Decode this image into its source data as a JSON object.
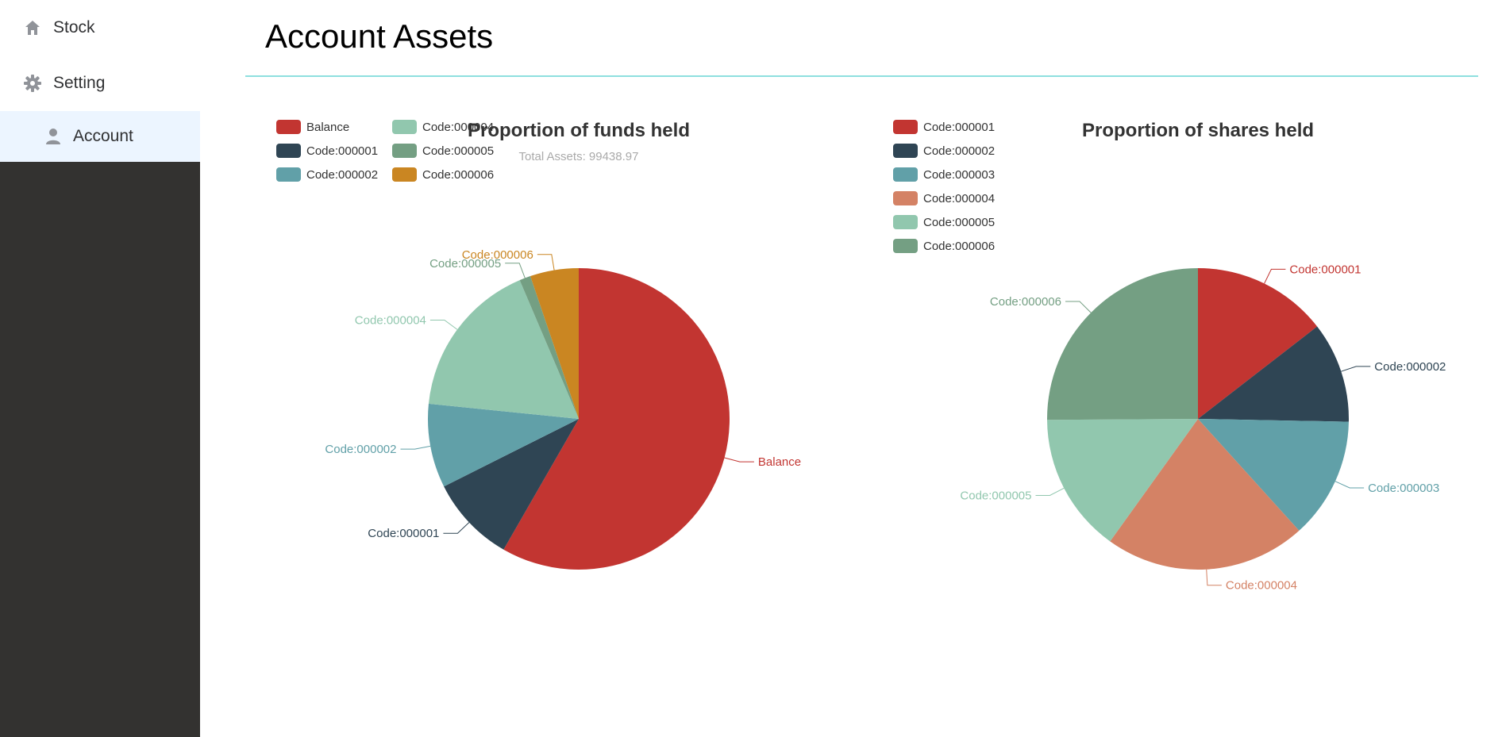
{
  "sidebar": {
    "items": [
      {
        "label": "Stock",
        "icon": "home-icon"
      },
      {
        "label": "Setting",
        "icon": "gear-icon"
      },
      {
        "label": "Account",
        "icon": "user-icon"
      }
    ]
  },
  "page": {
    "title": "Account Assets"
  },
  "colors": {
    "Balance": "#c23531",
    "Code:000001": "#2f4554",
    "Code:000002": "#61a0a8",
    "Code:000003": "#61a0a8",
    "Code:000004": "#d48265",
    "Code:000005": "#91c7ae",
    "Code:000006": "#749f83"
  },
  "chart_data": [
    {
      "type": "pie",
      "title": "Proportion of funds held",
      "subtitle": "Total Assets: 99438.97",
      "legend_position": "top-left",
      "legend": [
        "Balance",
        "Code:000001",
        "Code:000002",
        "Code:000004",
        "Code:000005",
        "Code:000006"
      ],
      "slices": [
        {
          "name": "Balance",
          "value": 58.3,
          "color": "#c23531"
        },
        {
          "name": "Code:000001",
          "value": 9.3,
          "color": "#2f4554"
        },
        {
          "name": "Code:000002",
          "value": 9.0,
          "color": "#61a0a8"
        },
        {
          "name": "Code:000004",
          "value": 17.0,
          "color": "#91c7ae"
        },
        {
          "name": "Code:000005",
          "value": 1.2,
          "color": "#749f83"
        },
        {
          "name": "Code:000006",
          "value": 5.2,
          "color": "#ca8622"
        }
      ]
    },
    {
      "type": "pie",
      "title": "Proportion of shares held",
      "subtitle": "",
      "legend_position": "top-left",
      "legend": [
        "Code:000001",
        "Code:000002",
        "Code:000003",
        "Code:000004",
        "Code:000005",
        "Code:000006"
      ],
      "slices": [
        {
          "name": "Code:000001",
          "value": 14.5,
          "color": "#c23531"
        },
        {
          "name": "Code:000002",
          "value": 10.8,
          "color": "#2f4554"
        },
        {
          "name": "Code:000003",
          "value": 13.0,
          "color": "#61a0a8"
        },
        {
          "name": "Code:000004",
          "value": 21.6,
          "color": "#d48265"
        },
        {
          "name": "Code:000005",
          "value": 15.0,
          "color": "#91c7ae"
        },
        {
          "name": "Code:000006",
          "value": 25.1,
          "color": "#749f83"
        }
      ]
    }
  ]
}
